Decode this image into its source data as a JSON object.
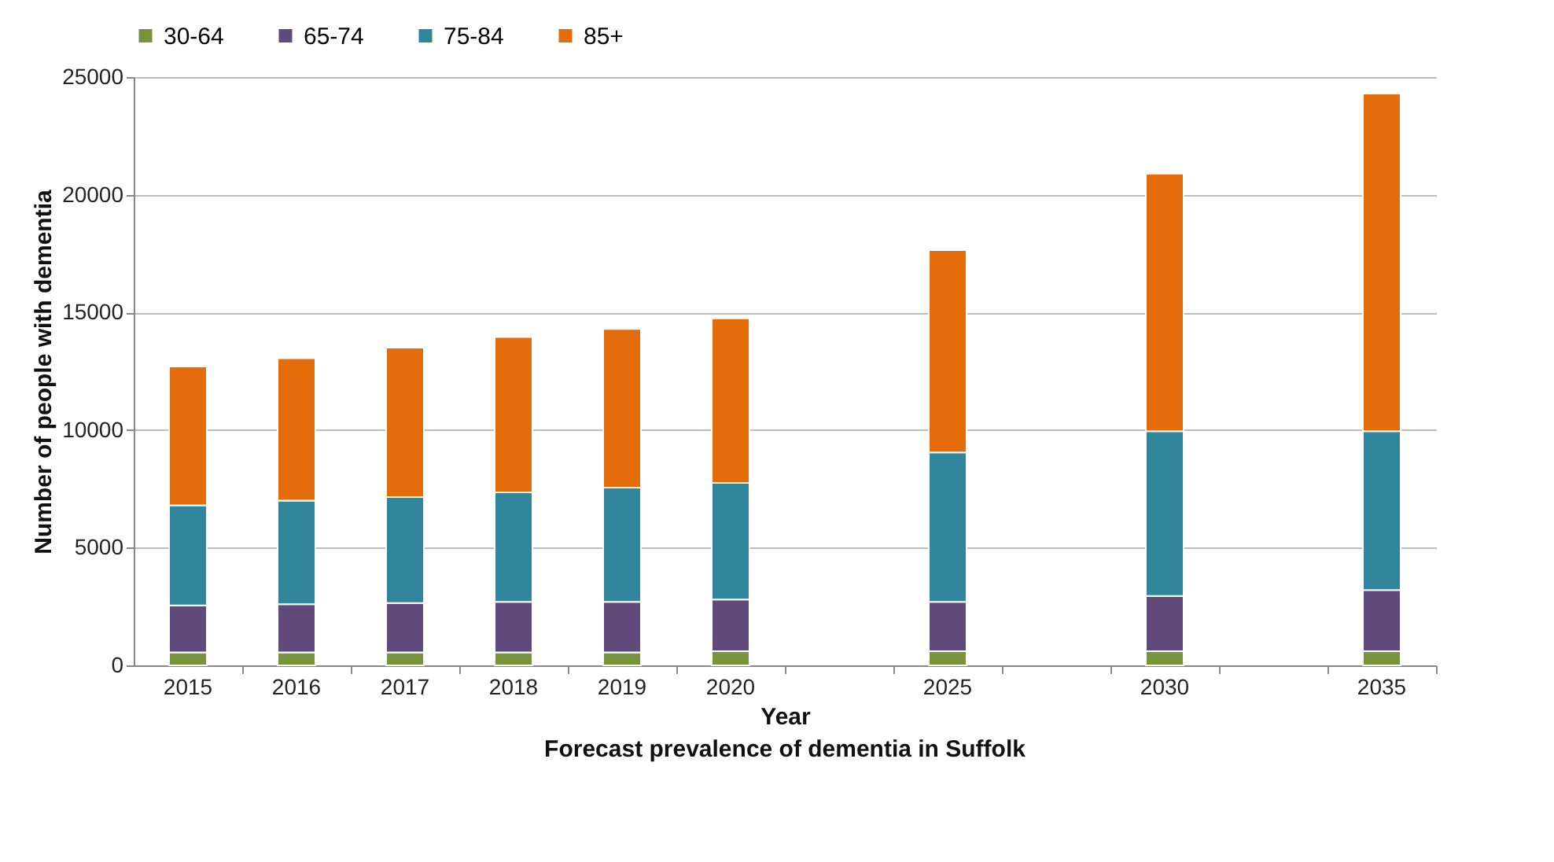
{
  "chart_data": {
    "type": "bar",
    "stacked": true,
    "title": "Forecast prevalence of dementia in Suffolk",
    "xlabel": "Year",
    "ylabel": "Number of people with dementia",
    "categories": [
      "2015",
      "2016",
      "2017",
      "2018",
      "2019",
      "2020",
      null,
      "2025",
      null,
      "2030",
      null,
      "2035"
    ],
    "series": [
      {
        "name": "30-64",
        "color": "#77933c",
        "values": [
          550,
          550,
          550,
          550,
          550,
          600,
          null,
          600,
          null,
          600,
          null,
          600
        ]
      },
      {
        "name": "65-74",
        "color": "#604a7b",
        "values": [
          2000,
          2050,
          2100,
          2150,
          2150,
          2200,
          null,
          2100,
          null,
          2350,
          null,
          2600
        ]
      },
      {
        "name": "75-84",
        "color": "#31859c",
        "values": [
          4250,
          4400,
          4500,
          4650,
          4850,
          4950,
          null,
          6350,
          null,
          7000,
          null,
          6750
        ]
      },
      {
        "name": "85+",
        "color": "#e46c0a",
        "values": [
          5900,
          6050,
          6350,
          6600,
          6750,
          7000,
          null,
          8600,
          null,
          10950,
          null,
          14350
        ]
      }
    ],
    "ylim": [
      0,
      25000
    ],
    "yticks": [
      0,
      5000,
      10000,
      15000,
      20000,
      25000
    ],
    "grid": "y",
    "legend": "top"
  }
}
